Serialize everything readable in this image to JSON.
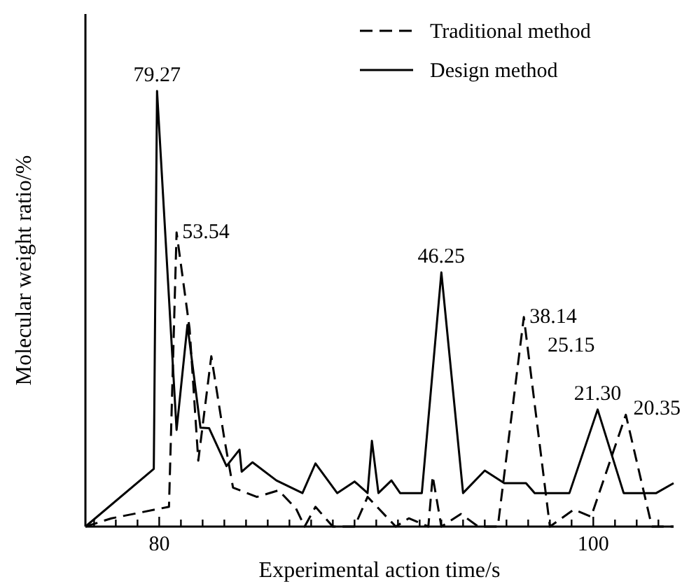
{
  "chart_data": {
    "type": "line",
    "xlabel": "Experimental action time/s",
    "ylabel": "Molecular weight ratio/%",
    "xlim": [
      76.6,
      103.7
    ],
    "xticks": [
      {
        "value": 77,
        "label": null
      },
      {
        "value": 78,
        "label": null
      },
      {
        "value": 79,
        "label": null
      },
      80,
      {
        "value": 81,
        "label": null
      },
      {
        "value": 82,
        "label": null
      },
      {
        "value": 83,
        "label": null
      },
      {
        "value": 84,
        "label": null
      },
      {
        "value": 85,
        "label": null
      },
      {
        "value": 86,
        "label": null
      },
      {
        "value": 87,
        "label": null
      },
      {
        "value": 88,
        "label": null
      },
      {
        "value": 89,
        "label": null
      },
      {
        "value": 90,
        "label": null
      },
      {
        "value": 91,
        "label": null
      },
      {
        "value": 92,
        "label": null
      },
      {
        "value": 93,
        "label": null
      },
      {
        "value": 94,
        "label": null
      },
      {
        "value": 95,
        "label": null
      },
      {
        "value": 96,
        "label": null
      },
      {
        "value": 97,
        "label": null
      },
      {
        "value": 98,
        "label": null
      },
      {
        "value": 99,
        "label": null
      },
      100,
      {
        "value": 101,
        "label": null
      },
      {
        "value": 102,
        "label": null
      },
      {
        "value": 103,
        "label": null
      }
    ],
    "legend": "top right",
    "tick_labels": "x",
    "series": [
      {
        "name": "Traditional method",
        "color": "#000000",
        "line_style": "dashed",
        "x": [
          76.6,
          77.8,
          80.45,
          80.8,
          81.4,
          81.7,
          81.8,
          82.4,
          83.0,
          83.4,
          84.5,
          85.5,
          86.3,
          86.7,
          87.2,
          88.0,
          89.0,
          89.6,
          90.9,
          91.5,
          92.4,
          92.6,
          93.0,
          93.9,
          94.7,
          95.6,
          96.8,
          98.0,
          99.1,
          99.9,
          101.5,
          102.7,
          103.7
        ],
        "values": [
          0,
          1.5,
          3.6,
          53.54,
          36,
          18,
          12,
          31,
          16,
          7.1,
          5.4,
          6.6,
          3.3,
          0,
          3.6,
          0,
          0,
          5.4,
          0,
          1.5,
          0,
          9.2,
          0,
          2.3,
          0,
          0,
          38.14,
          0,
          3.1,
          1.8,
          20.35,
          0,
          0
        ],
        "value_labels": [
          null,
          null,
          null,
          "53.54",
          null,
          null,
          null,
          null,
          null,
          null,
          null,
          null,
          null,
          null,
          null,
          null,
          null,
          null,
          null,
          null,
          null,
          null,
          null,
          null,
          null,
          null,
          "38.14",
          null,
          null,
          null,
          "20.35",
          null,
          null
        ]
      },
      {
        "name": "Design method",
        "color": "#000000",
        "line_style": "solid",
        "x": [
          76.6,
          79.75,
          79.9,
          80.8,
          81.3,
          81.9,
          82.3,
          83.1,
          83.7,
          83.8,
          84.3,
          85.4,
          86.6,
          87.2,
          88.2,
          89.0,
          89.6,
          89.8,
          90.1,
          90.7,
          91.1,
          92.1,
          93.0,
          94.0,
          95.0,
          95.9,
          96.9,
          97.3,
          98.9,
          100.2,
          101.4,
          102.9,
          103.7
        ],
        "values": [
          0,
          10.5,
          79.27,
          17.6,
          36.7,
          18,
          17.9,
          11,
          14,
          10,
          11.7,
          8.4,
          6.1,
          11.5,
          6.1,
          8.2,
          6.1,
          15.6,
          6.1,
          8.4,
          6.1,
          6.1,
          46.25,
          6.1,
          10.2,
          7.9,
          7.9,
          6.1,
          6.1,
          21.3,
          6.1,
          6.1,
          7.9
        ],
        "value_labels": [
          null,
          null,
          "79.27",
          null,
          null,
          null,
          null,
          null,
          null,
          null,
          null,
          null,
          null,
          null,
          null,
          null,
          null,
          null,
          null,
          null,
          null,
          null,
          "46.25",
          null,
          null,
          null,
          null,
          null,
          null,
          "21.30",
          null,
          null,
          null
        ]
      }
    ],
    "annotations": [
      "25.15"
    ]
  }
}
